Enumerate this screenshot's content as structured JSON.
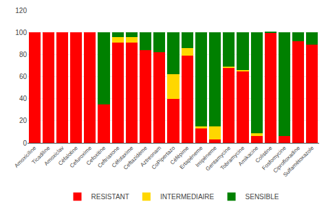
{
  "chart_data": {
    "type": "bar",
    "stacked": true,
    "categories": [
      "Amoxiciline",
      "Ticadiline",
      "Amoxiclav",
      "Céfalotine",
      "Cefuroxime",
      "Cefoxitine",
      "Ceftriaxone",
      "Céfotaxime",
      "Ceftazidème",
      "Aztreonam",
      "CoPipertazo",
      "Céfépime",
      "Ertapéneme",
      "Imipéneme",
      "Gentamycine",
      "Tobramycine",
      "Amikacine",
      "Colistine",
      "Fosfomycine",
      "Ciprofloxadine",
      "Sulfamétoxazole"
    ],
    "series": [
      {
        "name": "RESISTANT",
        "color": "#FF0000",
        "values": [
          100,
          100,
          100,
          100,
          100,
          35,
          91,
          91,
          84,
          82,
          40,
          79,
          13,
          3,
          68,
          65,
          6,
          100,
          6,
          92,
          89
        ]
      },
      {
        "name": "INTERMEDIAIRE",
        "color": "#FFD700",
        "values": [
          0,
          0,
          0,
          0,
          0,
          0,
          5,
          5,
          0,
          0,
          22,
          7,
          2,
          12,
          1,
          1,
          3,
          0,
          0,
          0,
          0
        ]
      },
      {
        "name": "SENSIBLE",
        "color": "#008000",
        "values": [
          0,
          0,
          0,
          0,
          0,
          65,
          4,
          4,
          16,
          18,
          38,
          14,
          85,
          85,
          31,
          34,
          91,
          1,
          94,
          8,
          11
        ]
      }
    ],
    "ylim": [
      0,
      120
    ],
    "yticks": [
      0,
      20,
      40,
      60,
      80,
      100,
      120
    ],
    "grid": true,
    "legend": "bottom"
  }
}
